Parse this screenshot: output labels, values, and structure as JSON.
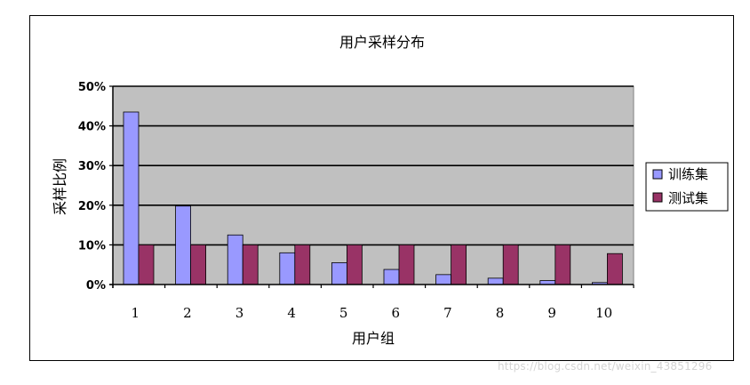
{
  "chart_data": {
    "type": "bar",
    "title": "用户采样分布",
    "xlabel": "用户组",
    "ylabel": "采样比例",
    "categories": [
      "1",
      "2",
      "3",
      "4",
      "5",
      "6",
      "7",
      "8",
      "9",
      "10"
    ],
    "series": [
      {
        "name": "训练集",
        "color": "#9999ff",
        "values": [
          43.5,
          19.8,
          12.5,
          8,
          5.5,
          3.8,
          2.5,
          1.6,
          1,
          0.5
        ]
      },
      {
        "name": "测试集",
        "color": "#993366",
        "values": [
          10,
          10,
          10,
          10,
          10,
          10,
          10,
          10,
          10,
          7.8
        ]
      }
    ],
    "ylim": [
      0,
      50
    ],
    "yticks": [
      0,
      10,
      20,
      30,
      40,
      50
    ],
    "yticklabels": [
      "0%",
      "10%",
      "20%",
      "30%",
      "40%",
      "50%"
    ],
    "grid": true,
    "plot_background": "#c0c0c0",
    "legend_position": "right"
  },
  "watermark": "https://blog.csdn.net/weixin_43851296"
}
